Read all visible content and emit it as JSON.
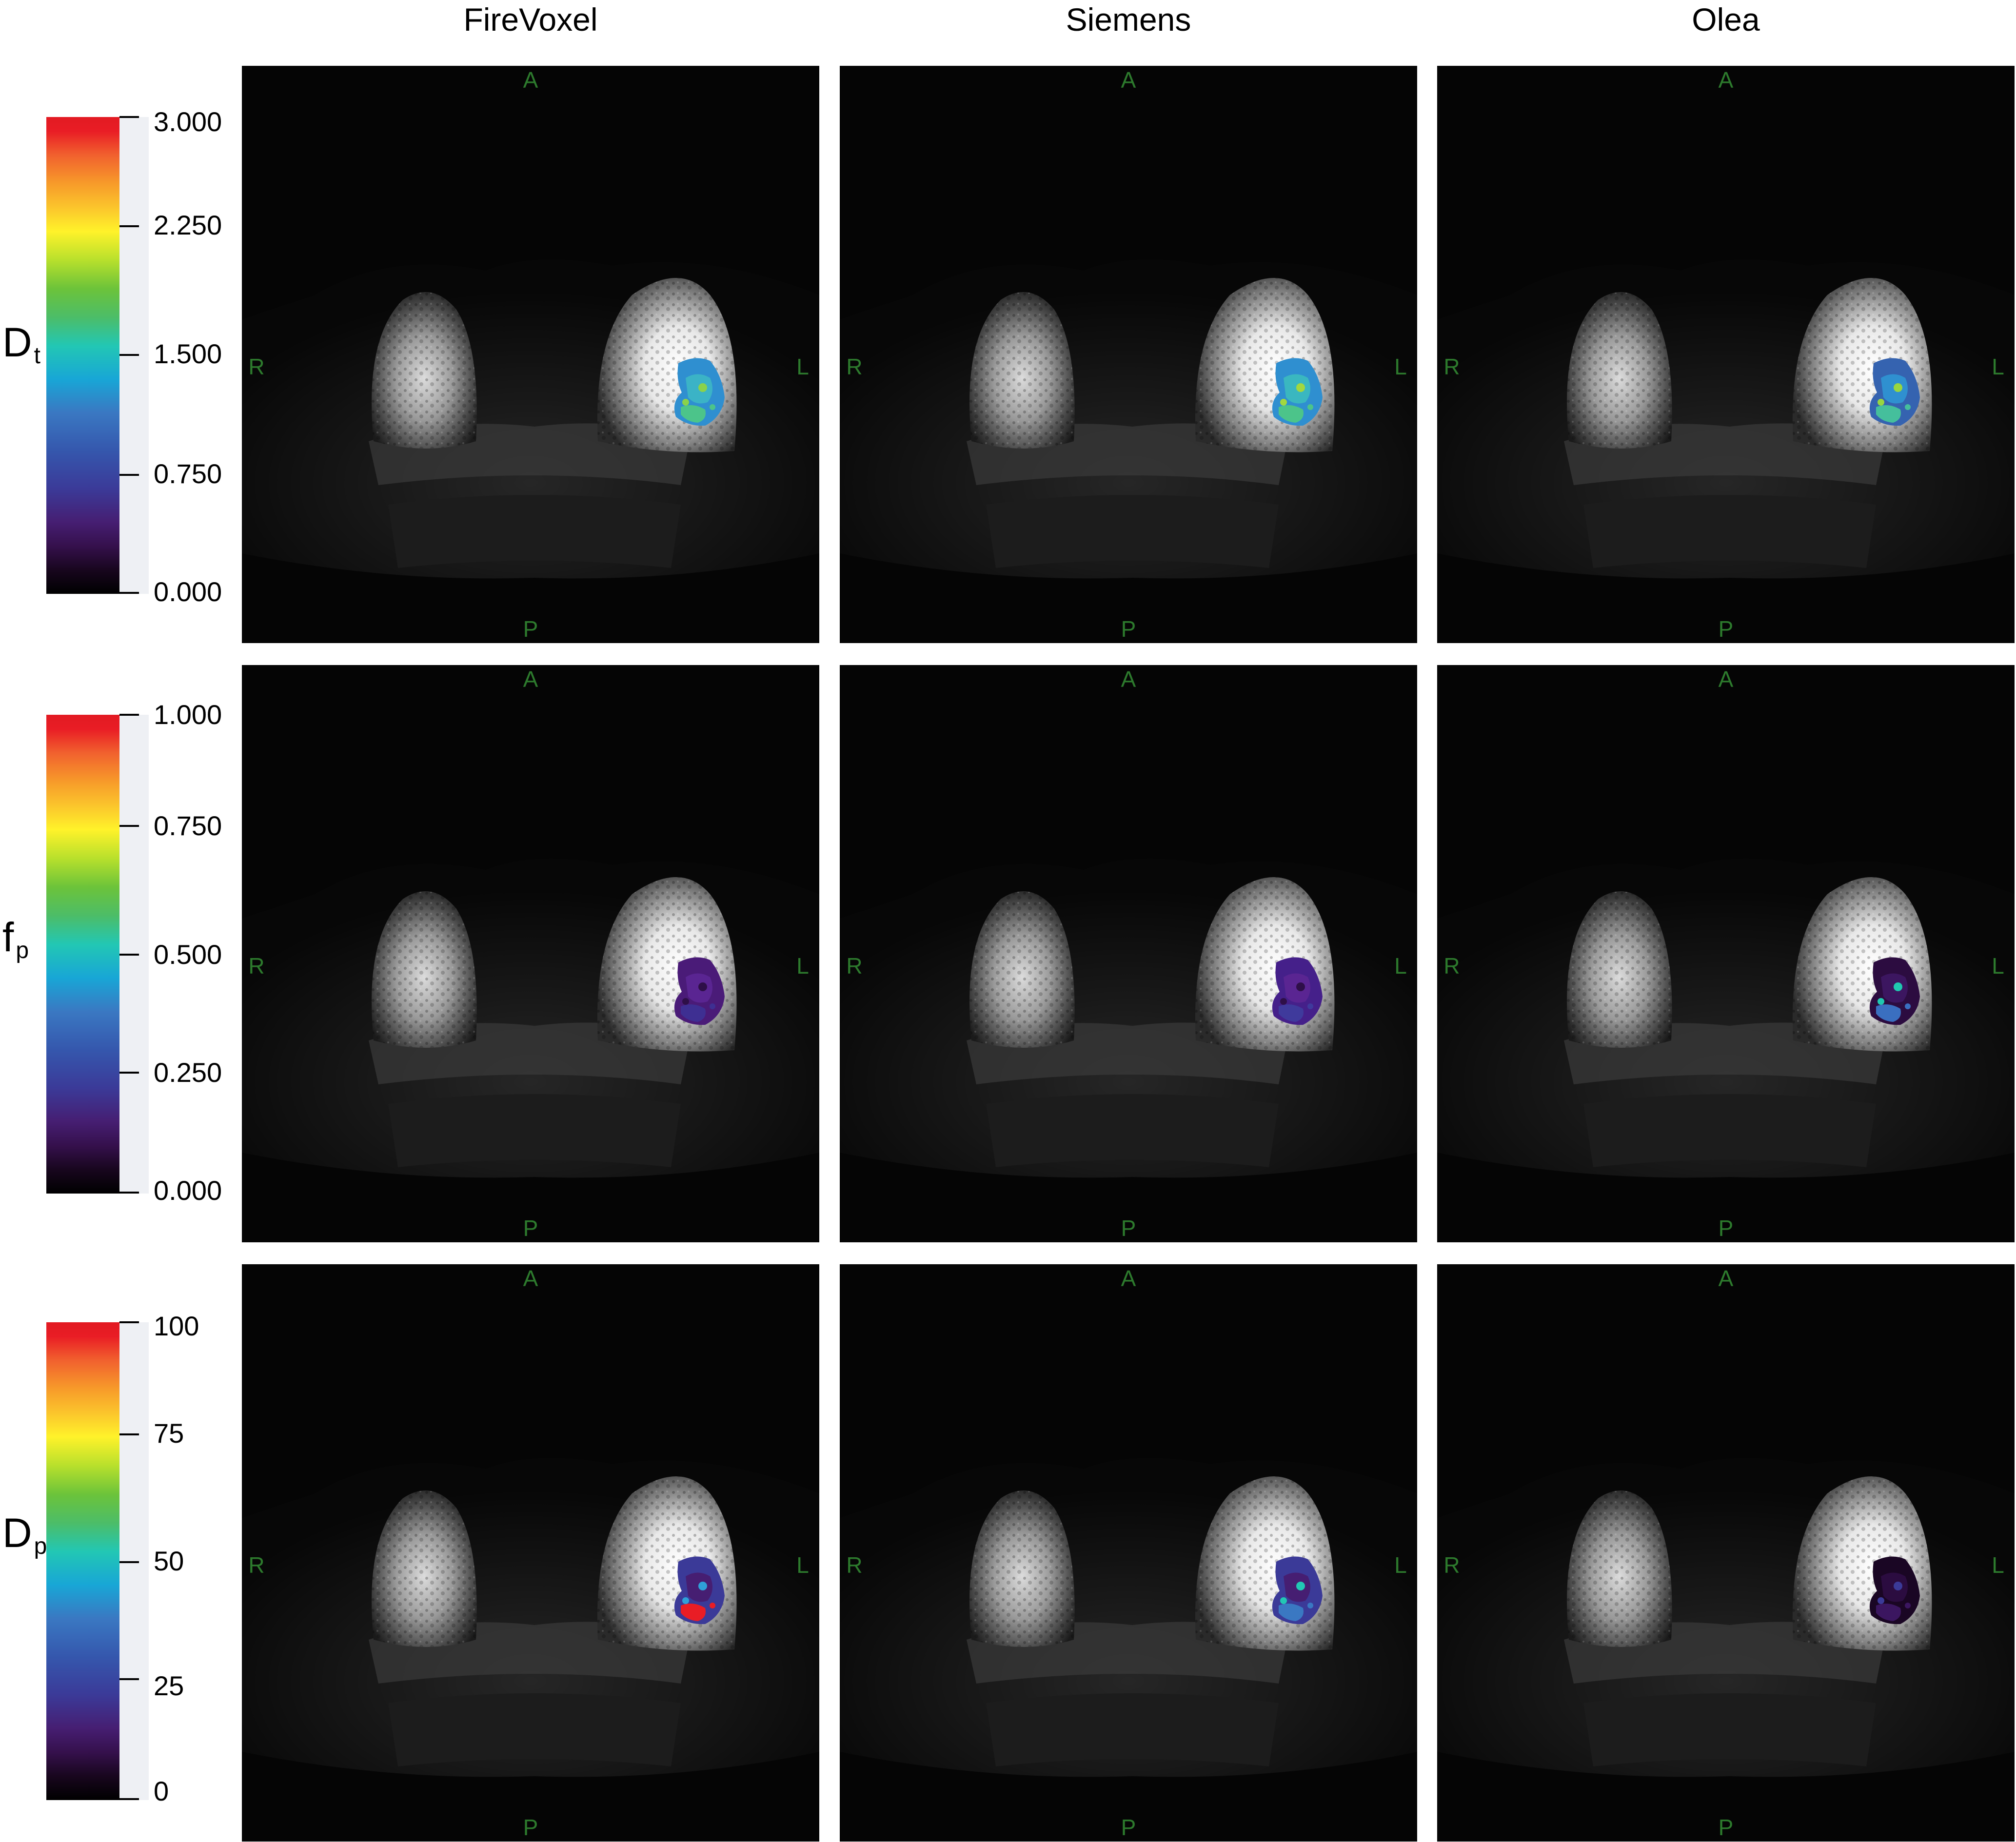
{
  "columns": [
    "FireVoxel",
    "Siemens",
    "Olea"
  ],
  "orientation": {
    "anterior": "A",
    "posterior": "P",
    "right": "R",
    "left": "L"
  },
  "rows": [
    {
      "param_main": "D",
      "param_sub": "t",
      "ticks": [
        "3.000",
        "2.250",
        "1.500",
        "0.750",
        "0.000"
      ],
      "tick_values": [
        3.0,
        2.25,
        1.5,
        0.75,
        0.0
      ],
      "scale_min": 0,
      "scale_max": 3.0,
      "roi_colors": [
        [
          "#2f8fd0",
          "#3bb3c6",
          "#4cc48a",
          "#8ad24a"
        ],
        [
          "#2f8fd0",
          "#3ab7c0",
          "#4cc48a",
          "#a2d83e"
        ],
        [
          "#3563b0",
          "#2f90d0",
          "#45bf9c",
          "#98d640"
        ]
      ]
    },
    {
      "param_main": "f",
      "param_sub": "p",
      "ticks": [
        "1.000",
        "0.750",
        "0.500",
        "0.250",
        "0.000"
      ],
      "tick_values": [
        1.0,
        0.75,
        0.5,
        0.25,
        0.0
      ],
      "scale_min": 0,
      "scale_max": 1.0,
      "roi_colors": [
        [
          "#4a1b78",
          "#5a2592",
          "#3e2f92",
          "#2e0f48"
        ],
        [
          "#45208a",
          "#5a2592",
          "#3f3a9c",
          "#2e0f48"
        ],
        [
          "#2c0c40",
          "#3c1660",
          "#3a6fc0",
          "#20c8b0"
        ]
      ]
    },
    {
      "param_main": "D",
      "param_sub": "p",
      "ticks": [
        "100",
        "75",
        "50",
        "25",
        "0"
      ],
      "tick_values": [
        100,
        75,
        50,
        25,
        0
      ],
      "scale_min": 0,
      "scale_max": 100,
      "roi_colors": [
        [
          "#3b3a98",
          "#461e72",
          "#e91d25",
          "#2fa0d8"
        ],
        [
          "#3b3a98",
          "#461e72",
          "#3a78c2",
          "#22c7b4"
        ],
        [
          "#1a0624",
          "#2b0c40",
          "#3b1660",
          "#3b3a98"
        ]
      ]
    }
  ]
}
